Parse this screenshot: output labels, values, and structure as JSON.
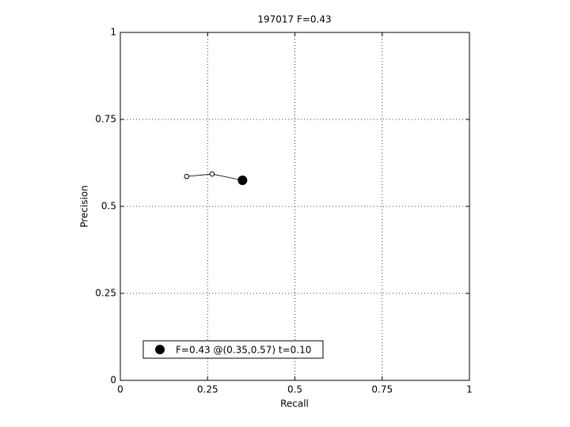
{
  "chart_data": {
    "type": "line",
    "title": "197017 F=0.43",
    "xlabel": "Recall",
    "ylabel": "Precision",
    "xlim": [
      0,
      1
    ],
    "ylim": [
      0,
      1
    ],
    "xticks": [
      0,
      0.25,
      0.5,
      0.75,
      1
    ],
    "yticks": [
      0,
      0.25,
      0.5,
      0.75,
      1
    ],
    "grid": true,
    "legend": "lower left",
    "series": [
      {
        "color": "#000000",
        "marker": "open-circle",
        "x": [
          0.19,
          0.263,
          0.35
        ],
        "values": [
          0.586,
          0.593,
          0.575
        ]
      },
      {
        "name": "F=0.43 @(0.35,0.57) t=0.10",
        "color": "#000000",
        "marker": "filled-circle",
        "x": [
          0.35
        ],
        "values": [
          0.575
        ]
      }
    ]
  }
}
